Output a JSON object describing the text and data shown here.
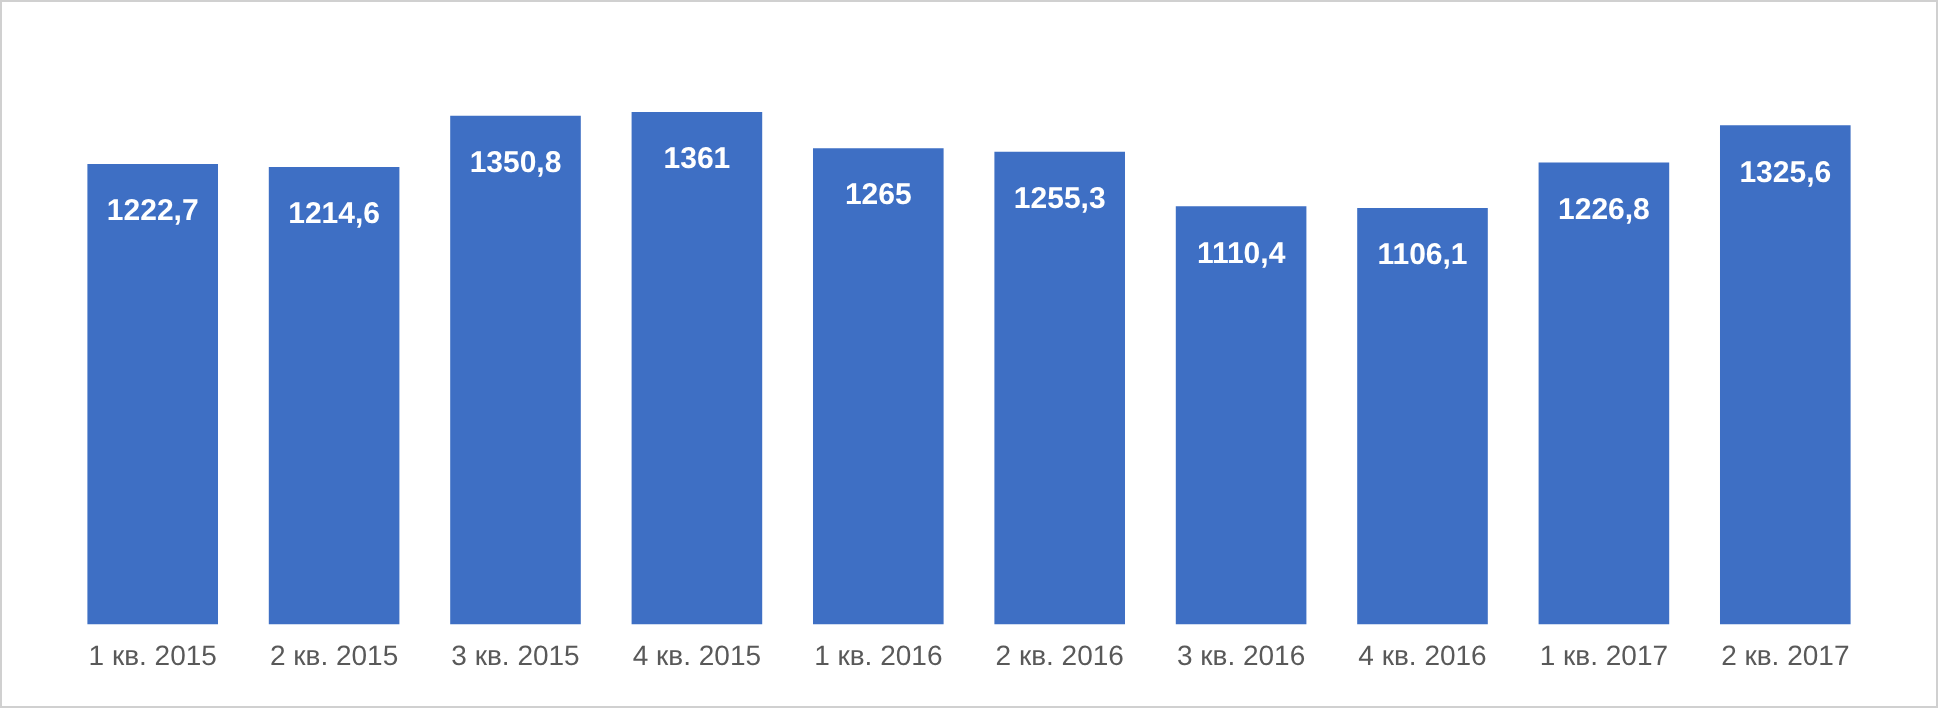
{
  "chart_data": {
    "type": "bar",
    "categories": [
      "1 кв. 2015",
      "2 кв. 2015",
      "3 кв. 2015",
      "4 кв. 2015",
      "1 кв. 2016",
      "2 кв. 2016",
      "3 кв. 2016",
      "4 кв. 2016",
      "1 кв. 2017",
      "2 кв. 2017"
    ],
    "values": [
      1222.7,
      1214.6,
      1350.8,
      1361,
      1265,
      1255.3,
      1110.4,
      1106.1,
      1226.8,
      1325.6
    ],
    "value_labels": [
      "1222,7",
      "1214,6",
      "1350,8",
      "1361",
      "1265",
      "1255,3",
      "1110,4",
      "1106,1",
      "1226,8",
      "1325,6"
    ],
    "color": "#3e6fc4",
    "grid": false,
    "legend": false,
    "tick_labels": "x"
  }
}
